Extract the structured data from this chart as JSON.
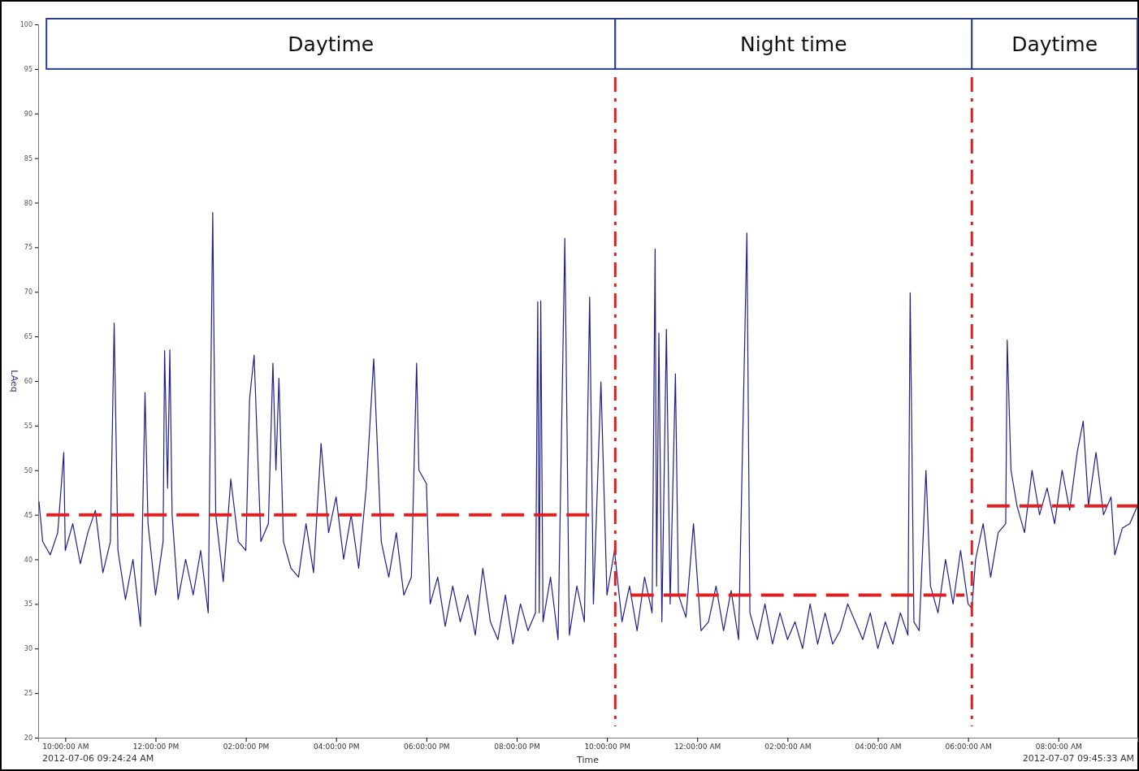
{
  "chart_data": {
    "type": "line",
    "xlabel": "Time",
    "ylabel": "LAeq",
    "xlim": [
      "2012-07-06T09:24",
      "2012-07-07T09:45"
    ],
    "xticks": [
      {
        "value": "2012-07-06T10:00",
        "label": "10:00:00 AM"
      },
      {
        "value": "2012-07-06T12:00",
        "label": "12:00:00 PM"
      },
      {
        "value": "2012-07-06T14:00",
        "label": "02:00:00 PM"
      },
      {
        "value": "2012-07-06T16:00",
        "label": "04:00:00 PM"
      },
      {
        "value": "2012-07-06T18:00",
        "label": "06:00:00 PM"
      },
      {
        "value": "2012-07-06T20:00",
        "label": "08:00:00 PM"
      },
      {
        "value": "2012-07-06T22:00",
        "label": "10:00:00 PM"
      },
      {
        "value": "2012-07-07T00:00",
        "label": "12:00:00 AM"
      },
      {
        "value": "2012-07-07T02:00",
        "label": "02:00:00 AM"
      },
      {
        "value": "2012-07-07T04:00",
        "label": "04:00:00 AM"
      },
      {
        "value": "2012-07-07T06:00",
        "label": "06:00:00 AM"
      },
      {
        "value": "2012-07-07T08:00",
        "label": "08:00:00 AM"
      }
    ],
    "ylim": [
      20,
      100
    ],
    "yticks": [
      20,
      25,
      30,
      35,
      40,
      45,
      50,
      55,
      60,
      65,
      70,
      75,
      80,
      85,
      90,
      95,
      100
    ],
    "grid": false,
    "marker": "none",
    "annotations": [
      "2012-07-06 09:24:24 AM",
      "2012-07-07 09:45:33 AM"
    ],
    "bands": [
      {
        "axis": "x",
        "from": "2012-07-06T09:35",
        "to": "2012-07-06T22:11",
        "label": "Daytime"
      },
      {
        "axis": "x",
        "from": "2012-07-06T22:11",
        "to": "2012-07-07T06:05",
        "label": "Night time"
      },
      {
        "axis": "x",
        "from": "2012-07-07T06:05",
        "to": "2012-07-07T09:45",
        "label": "Daytime"
      }
    ],
    "ref_lines": [
      {
        "axis": "x",
        "value": "2012-07-06T22:11",
        "color": "#e02020",
        "line_style": "dashed"
      },
      {
        "axis": "x",
        "value": "2012-07-07T06:05",
        "color": "#e02020",
        "line_style": "dashed"
      }
    ],
    "series": [
      {
        "color": "#1f1f8a",
        "line_style": "solid",
        "x": [
          "2012-07-06T09:25",
          "2012-07-06T09:30",
          "2012-07-06T09:40",
          "2012-07-06T09:50",
          "2012-07-06T09:58",
          "2012-07-06T10:00",
          "2012-07-06T10:10",
          "2012-07-06T10:20",
          "2012-07-06T10:30",
          "2012-07-06T10:40",
          "2012-07-06T10:50",
          "2012-07-06T11:00",
          "2012-07-06T11:05",
          "2012-07-06T11:10",
          "2012-07-06T11:20",
          "2012-07-06T11:30",
          "2012-07-06T11:40",
          "2012-07-06T11:46",
          "2012-07-06T11:50",
          "2012-07-06T12:00",
          "2012-07-06T12:10",
          "2012-07-06T12:12",
          "2012-07-06T12:16",
          "2012-07-06T12:19",
          "2012-07-06T12:22",
          "2012-07-06T12:30",
          "2012-07-06T12:40",
          "2012-07-06T12:50",
          "2012-07-06T13:00",
          "2012-07-06T13:10",
          "2012-07-06T13:16",
          "2012-07-06T13:20",
          "2012-07-06T13:30",
          "2012-07-06T13:40",
          "2012-07-06T13:50",
          "2012-07-06T14:00",
          "2012-07-06T14:05",
          "2012-07-06T14:11",
          "2012-07-06T14:20",
          "2012-07-06T14:30",
          "2012-07-06T14:36",
          "2012-07-06T14:40",
          "2012-07-06T14:44",
          "2012-07-06T14:50",
          "2012-07-06T15:00",
          "2012-07-06T15:10",
          "2012-07-06T15:20",
          "2012-07-06T15:30",
          "2012-07-06T15:40",
          "2012-07-06T15:50",
          "2012-07-06T16:00",
          "2012-07-06T16:10",
          "2012-07-06T16:20",
          "2012-07-06T16:30",
          "2012-07-06T16:40",
          "2012-07-06T16:50",
          "2012-07-06T17:00",
          "2012-07-06T17:10",
          "2012-07-06T17:20",
          "2012-07-06T17:30",
          "2012-07-06T17:40",
          "2012-07-06T17:47",
          "2012-07-06T17:50",
          "2012-07-06T18:00",
          "2012-07-06T18:05",
          "2012-07-06T18:15",
          "2012-07-06T18:25",
          "2012-07-06T18:35",
          "2012-07-06T18:45",
          "2012-07-06T18:55",
          "2012-07-06T19:05",
          "2012-07-06T19:15",
          "2012-07-06T19:25",
          "2012-07-06T19:35",
          "2012-07-06T19:45",
          "2012-07-06T19:55",
          "2012-07-06T20:05",
          "2012-07-06T20:15",
          "2012-07-06T20:25",
          "2012-07-06T20:28",
          "2012-07-06T20:30",
          "2012-07-06T20:32",
          "2012-07-06T20:35",
          "2012-07-06T20:45",
          "2012-07-06T20:55",
          "2012-07-06T21:04",
          "2012-07-06T21:10",
          "2012-07-06T21:20",
          "2012-07-06T21:30",
          "2012-07-06T21:37",
          "2012-07-06T21:42",
          "2012-07-06T21:52",
          "2012-07-06T22:00",
          "2012-07-06T22:10",
          "2012-07-06T22:20",
          "2012-07-06T22:30",
          "2012-07-06T22:40",
          "2012-07-06T22:50",
          "2012-07-06T23:00",
          "2012-07-06T23:04",
          "2012-07-06T23:06",
          "2012-07-06T23:09",
          "2012-07-06T23:13",
          "2012-07-06T23:19",
          "2012-07-06T23:24",
          "2012-07-06T23:31",
          "2012-07-06T23:35",
          "2012-07-06T23:45",
          "2012-07-06T23:55",
          "2012-07-07T00:05",
          "2012-07-07T00:15",
          "2012-07-07T00:25",
          "2012-07-07T00:35",
          "2012-07-07T00:45",
          "2012-07-07T00:55",
          "2012-07-07T01:06",
          "2012-07-07T01:10",
          "2012-07-07T01:20",
          "2012-07-07T01:30",
          "2012-07-07T01:40",
          "2012-07-07T01:50",
          "2012-07-07T02:00",
          "2012-07-07T02:10",
          "2012-07-07T02:20",
          "2012-07-07T02:30",
          "2012-07-07T02:40",
          "2012-07-07T02:50",
          "2012-07-07T03:00",
          "2012-07-07T03:10",
          "2012-07-07T03:20",
          "2012-07-07T03:30",
          "2012-07-07T03:40",
          "2012-07-07T03:50",
          "2012-07-07T04:00",
          "2012-07-07T04:10",
          "2012-07-07T04:20",
          "2012-07-07T04:30",
          "2012-07-07T04:40",
          "2012-07-07T04:43",
          "2012-07-07T04:48",
          "2012-07-07T04:55",
          "2012-07-07T05:04",
          "2012-07-07T05:10",
          "2012-07-07T05:20",
          "2012-07-07T05:30",
          "2012-07-07T05:40",
          "2012-07-07T05:50",
          "2012-07-07T06:00",
          "2012-07-07T06:05",
          "2012-07-07T06:10",
          "2012-07-07T06:20",
          "2012-07-07T06:30",
          "2012-07-07T06:40",
          "2012-07-07T06:50",
          "2012-07-07T06:52",
          "2012-07-07T06:57",
          "2012-07-07T07:05",
          "2012-07-07T07:15",
          "2012-07-07T07:25",
          "2012-07-07T07:35",
          "2012-07-07T07:45",
          "2012-07-07T07:55",
          "2012-07-07T08:05",
          "2012-07-07T08:15",
          "2012-07-07T08:25",
          "2012-07-07T08:33",
          "2012-07-07T08:40",
          "2012-07-07T08:50",
          "2012-07-07T09:00",
          "2012-07-07T09:10",
          "2012-07-07T09:15",
          "2012-07-07T09:25",
          "2012-07-07T09:35",
          "2012-07-07T09:45"
        ],
        "values": [
          46.5,
          42,
          40.5,
          43,
          52,
          41,
          44,
          39.5,
          43,
          45.5,
          38.5,
          42,
          66.5,
          41,
          35.5,
          40,
          32.5,
          58.7,
          44,
          36,
          42,
          63.4,
          48,
          63.5,
          45,
          35.5,
          40,
          36,
          41,
          34,
          78.9,
          45,
          37.5,
          49,
          42,
          41,
          58,
          62.9,
          42,
          44,
          62,
          50,
          60.3,
          42,
          39,
          38,
          44,
          38.5,
          53,
          43,
          47,
          40,
          45,
          39,
          48,
          62.5,
          42,
          38,
          43,
          36,
          38,
          62,
          50,
          48.5,
          35,
          38,
          32.5,
          37,
          33,
          36,
          31.5,
          39,
          33,
          31,
          36,
          30.5,
          35,
          32,
          34,
          68.9,
          34,
          69,
          33,
          38,
          31,
          76,
          31.5,
          37,
          33,
          69.4,
          35,
          59.9,
          36,
          41,
          33,
          37,
          32,
          38,
          34,
          74.8,
          37,
          65.4,
          33,
          65.8,
          35,
          60.8,
          36,
          33.5,
          44,
          32,
          33,
          37,
          32,
          36.5,
          31,
          76.6,
          34,
          31,
          35,
          30.5,
          34,
          31,
          33,
          30,
          35,
          30.5,
          34,
          30.5,
          32,
          35,
          33,
          31,
          34,
          30,
          33,
          30.5,
          34,
          31.5,
          69.9,
          33,
          32,
          50,
          37,
          34,
          40,
          35,
          41,
          35,
          34.5,
          40,
          44,
          38,
          43,
          44,
          64.6,
          50,
          46,
          43,
          50,
          45,
          48,
          44,
          50,
          45.5,
          52,
          55.5,
          46,
          52,
          45,
          47,
          40.5,
          43.5,
          44,
          46
        ]
      },
      {
        "color": "#e02020",
        "line_style": "dashed",
        "x": [
          "2012-07-06T09:35",
          "2012-07-06T21:39"
        ],
        "values": [
          45,
          45
        ]
      },
      {
        "color": "#e02020",
        "line_style": "dashed",
        "x": [
          "2012-07-06T22:32",
          "2012-07-07T05:55"
        ],
        "values": [
          36,
          36
        ]
      },
      {
        "color": "#e02020",
        "line_style": "dashed",
        "x": [
          "2012-07-07T06:25",
          "2012-07-07T09:45"
        ],
        "values": [
          46,
          46
        ]
      }
    ]
  }
}
